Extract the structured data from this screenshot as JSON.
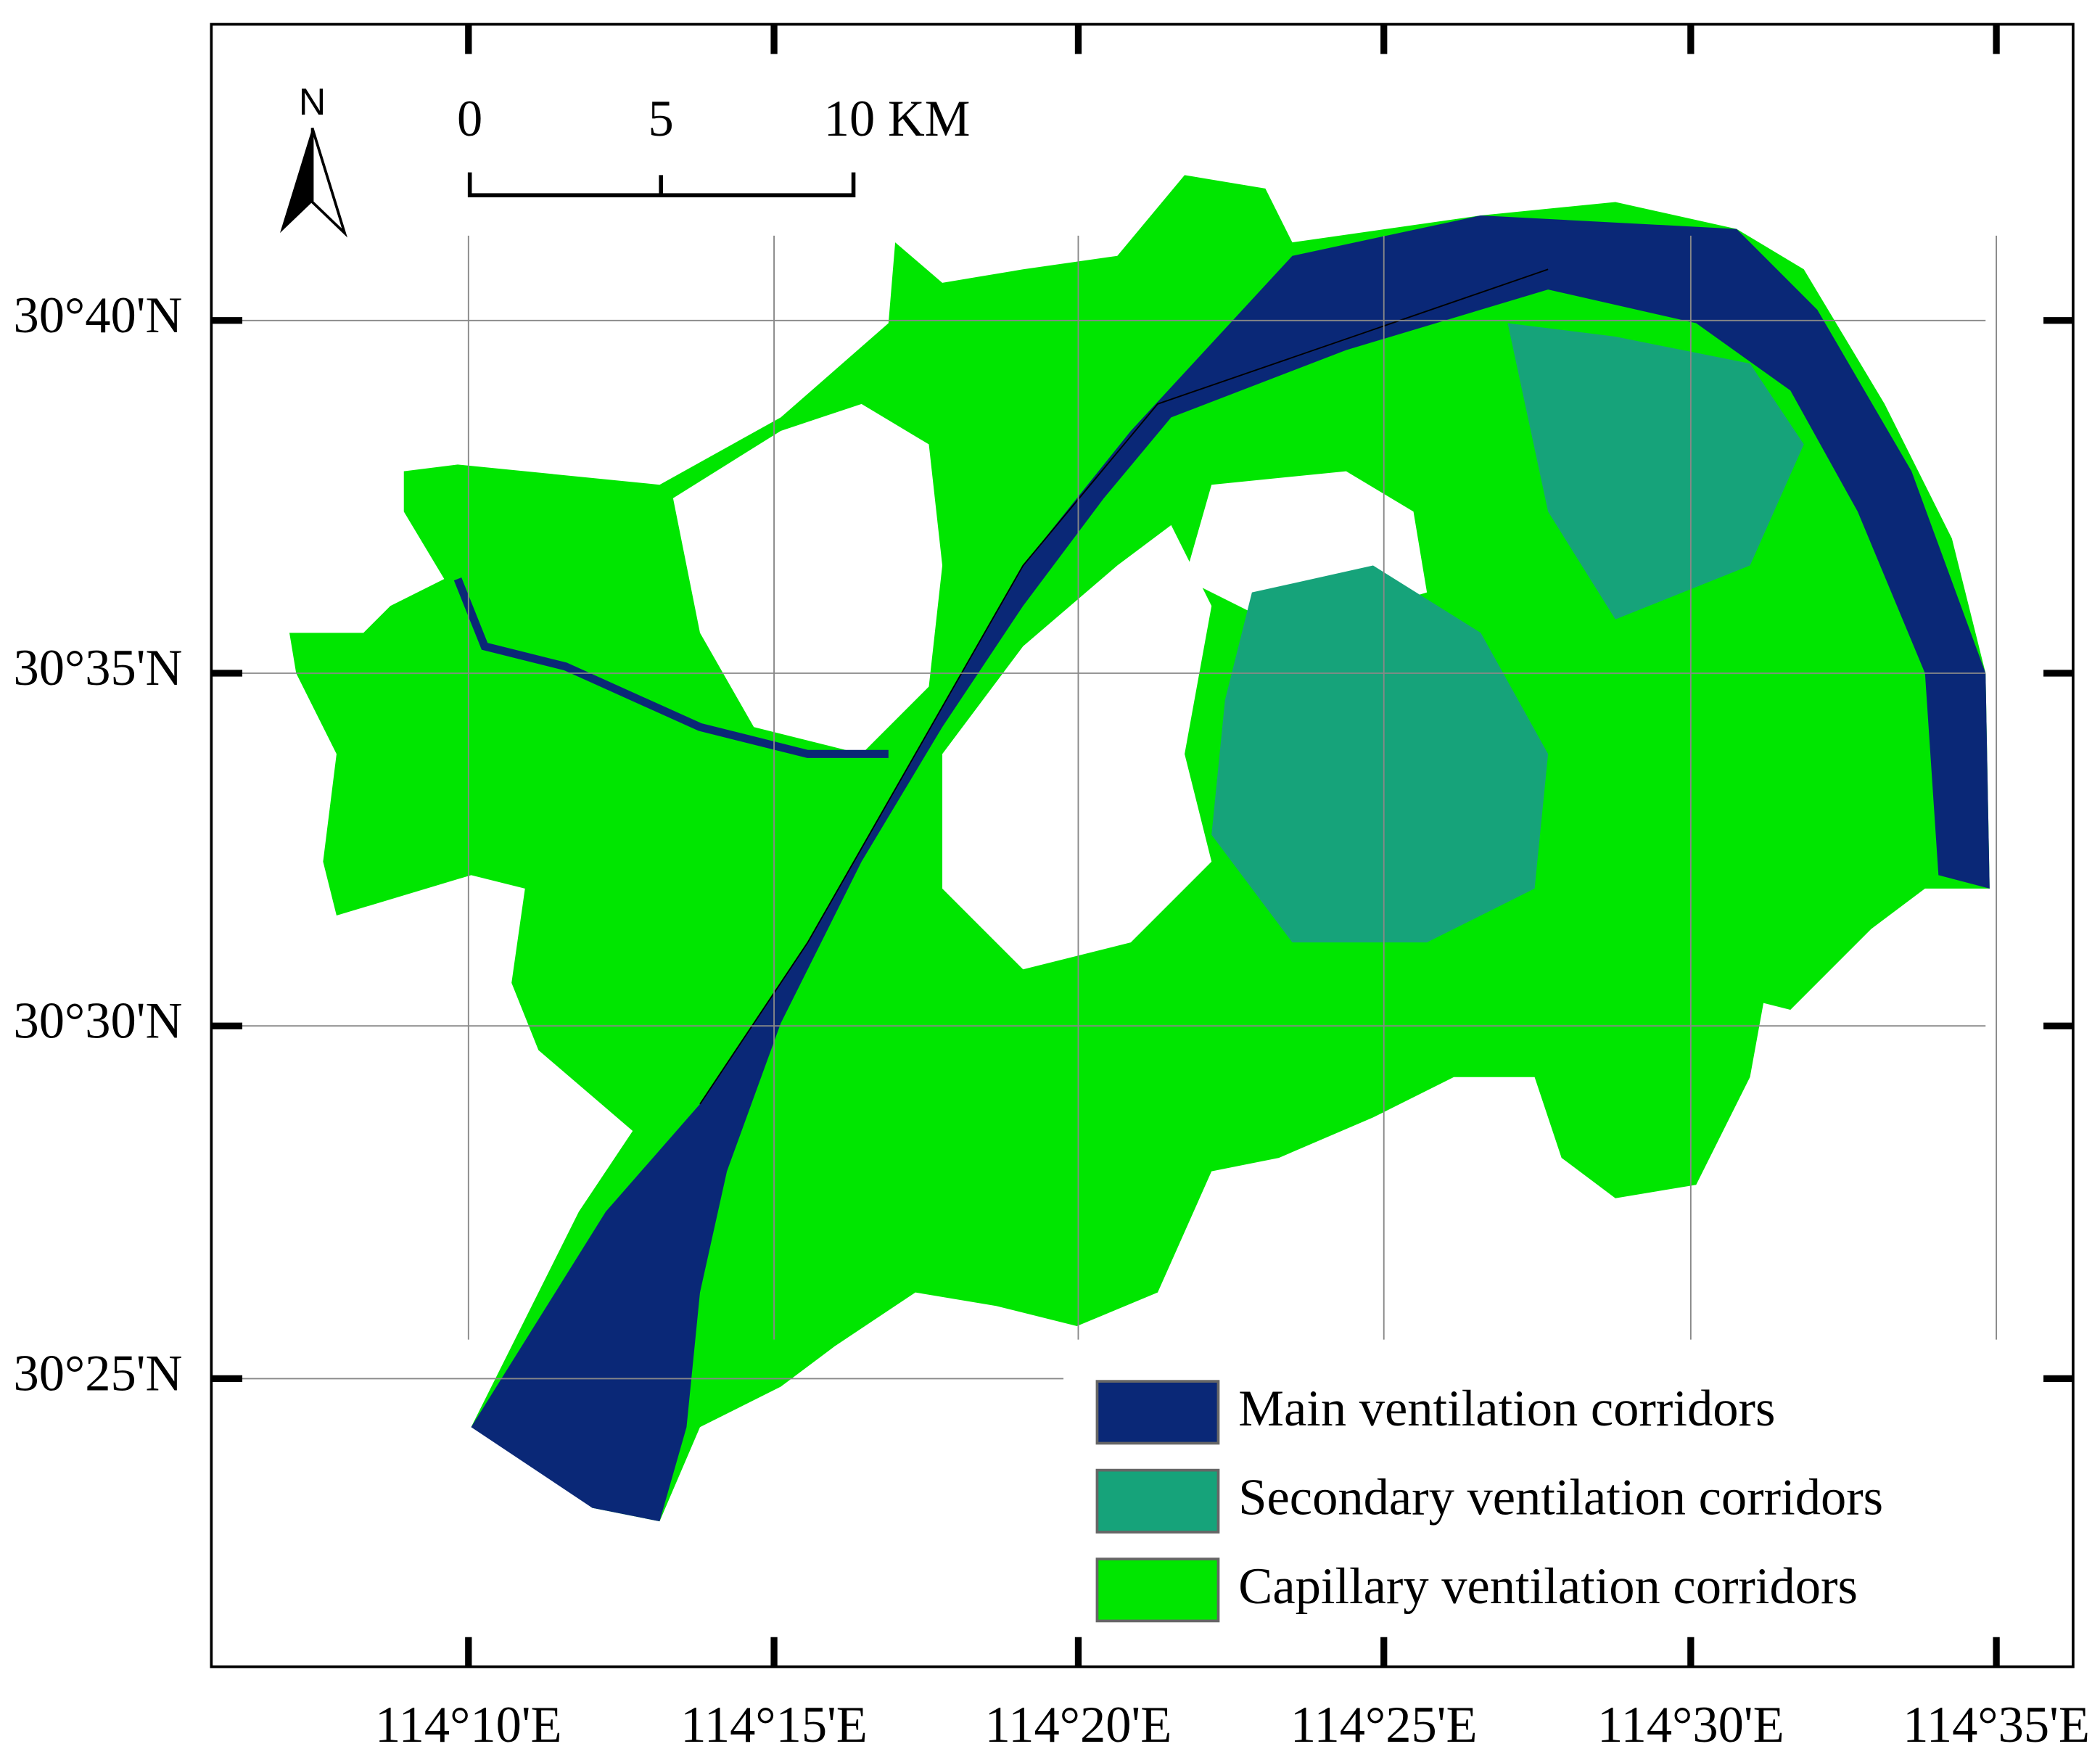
{
  "north_arrow": {
    "label": "N"
  },
  "scale_bar": {
    "labels": [
      "0",
      "5",
      "10 KM"
    ]
  },
  "latitude_labels": [
    "30°40'N",
    "30°35'N",
    "30°30'N",
    "30°25'N"
  ],
  "longitude_labels": [
    "114°10'E",
    "114°15'E",
    "114°20'E",
    "114°25'E",
    "114°30'E",
    "114°35'E"
  ],
  "legend": [
    {
      "label": "Main ventilation corridors",
      "color": "#0a2877"
    },
    {
      "label": "Secondary ventilation corridors",
      "color": "#16a37a"
    },
    {
      "label": "Capillary ventilation corridors",
      "color": "#00e600"
    }
  ]
}
